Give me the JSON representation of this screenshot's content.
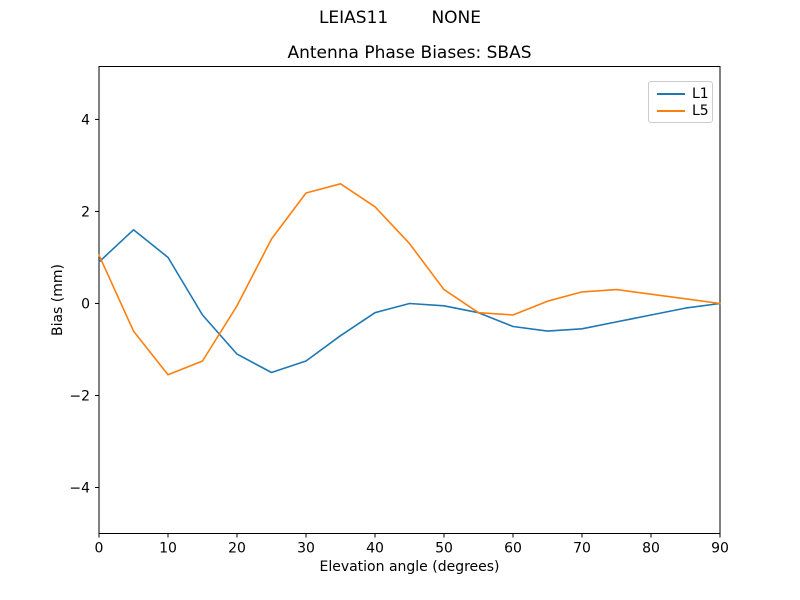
{
  "header": {
    "suptitle": "LEIAS11        NONE",
    "title": "Antenna Phase Biases: SBAS"
  },
  "chart_data": {
    "type": "line",
    "title": "Antenna Phase Biases: SBAS",
    "xlabel": "Elevation angle (degrees)",
    "ylabel": "Bias (mm)",
    "xlim": [
      0,
      90
    ],
    "ylim": [
      -5.0,
      5.15
    ],
    "xticks": [
      0,
      10,
      20,
      30,
      40,
      50,
      60,
      70,
      80,
      90
    ],
    "yticks": [
      -4,
      -2,
      0,
      2,
      4
    ],
    "grid": false,
    "legend_position": "upper right",
    "x": [
      0,
      5,
      10,
      15,
      20,
      25,
      30,
      35,
      40,
      45,
      50,
      55,
      60,
      65,
      70,
      75,
      80,
      85,
      90
    ],
    "series": [
      {
        "name": "L1",
        "color": "#1f77b4",
        "values": [
          0.9,
          1.6,
          1.0,
          -0.25,
          -1.1,
          -1.5,
          -1.25,
          -0.7,
          -0.2,
          0.0,
          -0.05,
          -0.2,
          -0.5,
          -0.6,
          -0.55,
          -0.4,
          -0.25,
          -0.1,
          0.0
        ]
      },
      {
        "name": "L5",
        "color": "#ff7f0e",
        "values": [
          1.05,
          -0.6,
          -1.55,
          -1.25,
          -0.05,
          1.4,
          2.4,
          2.6,
          2.1,
          1.3,
          0.3,
          -0.2,
          -0.25,
          0.05,
          0.25,
          0.3,
          0.2,
          0.1,
          0.0
        ]
      }
    ]
  }
}
